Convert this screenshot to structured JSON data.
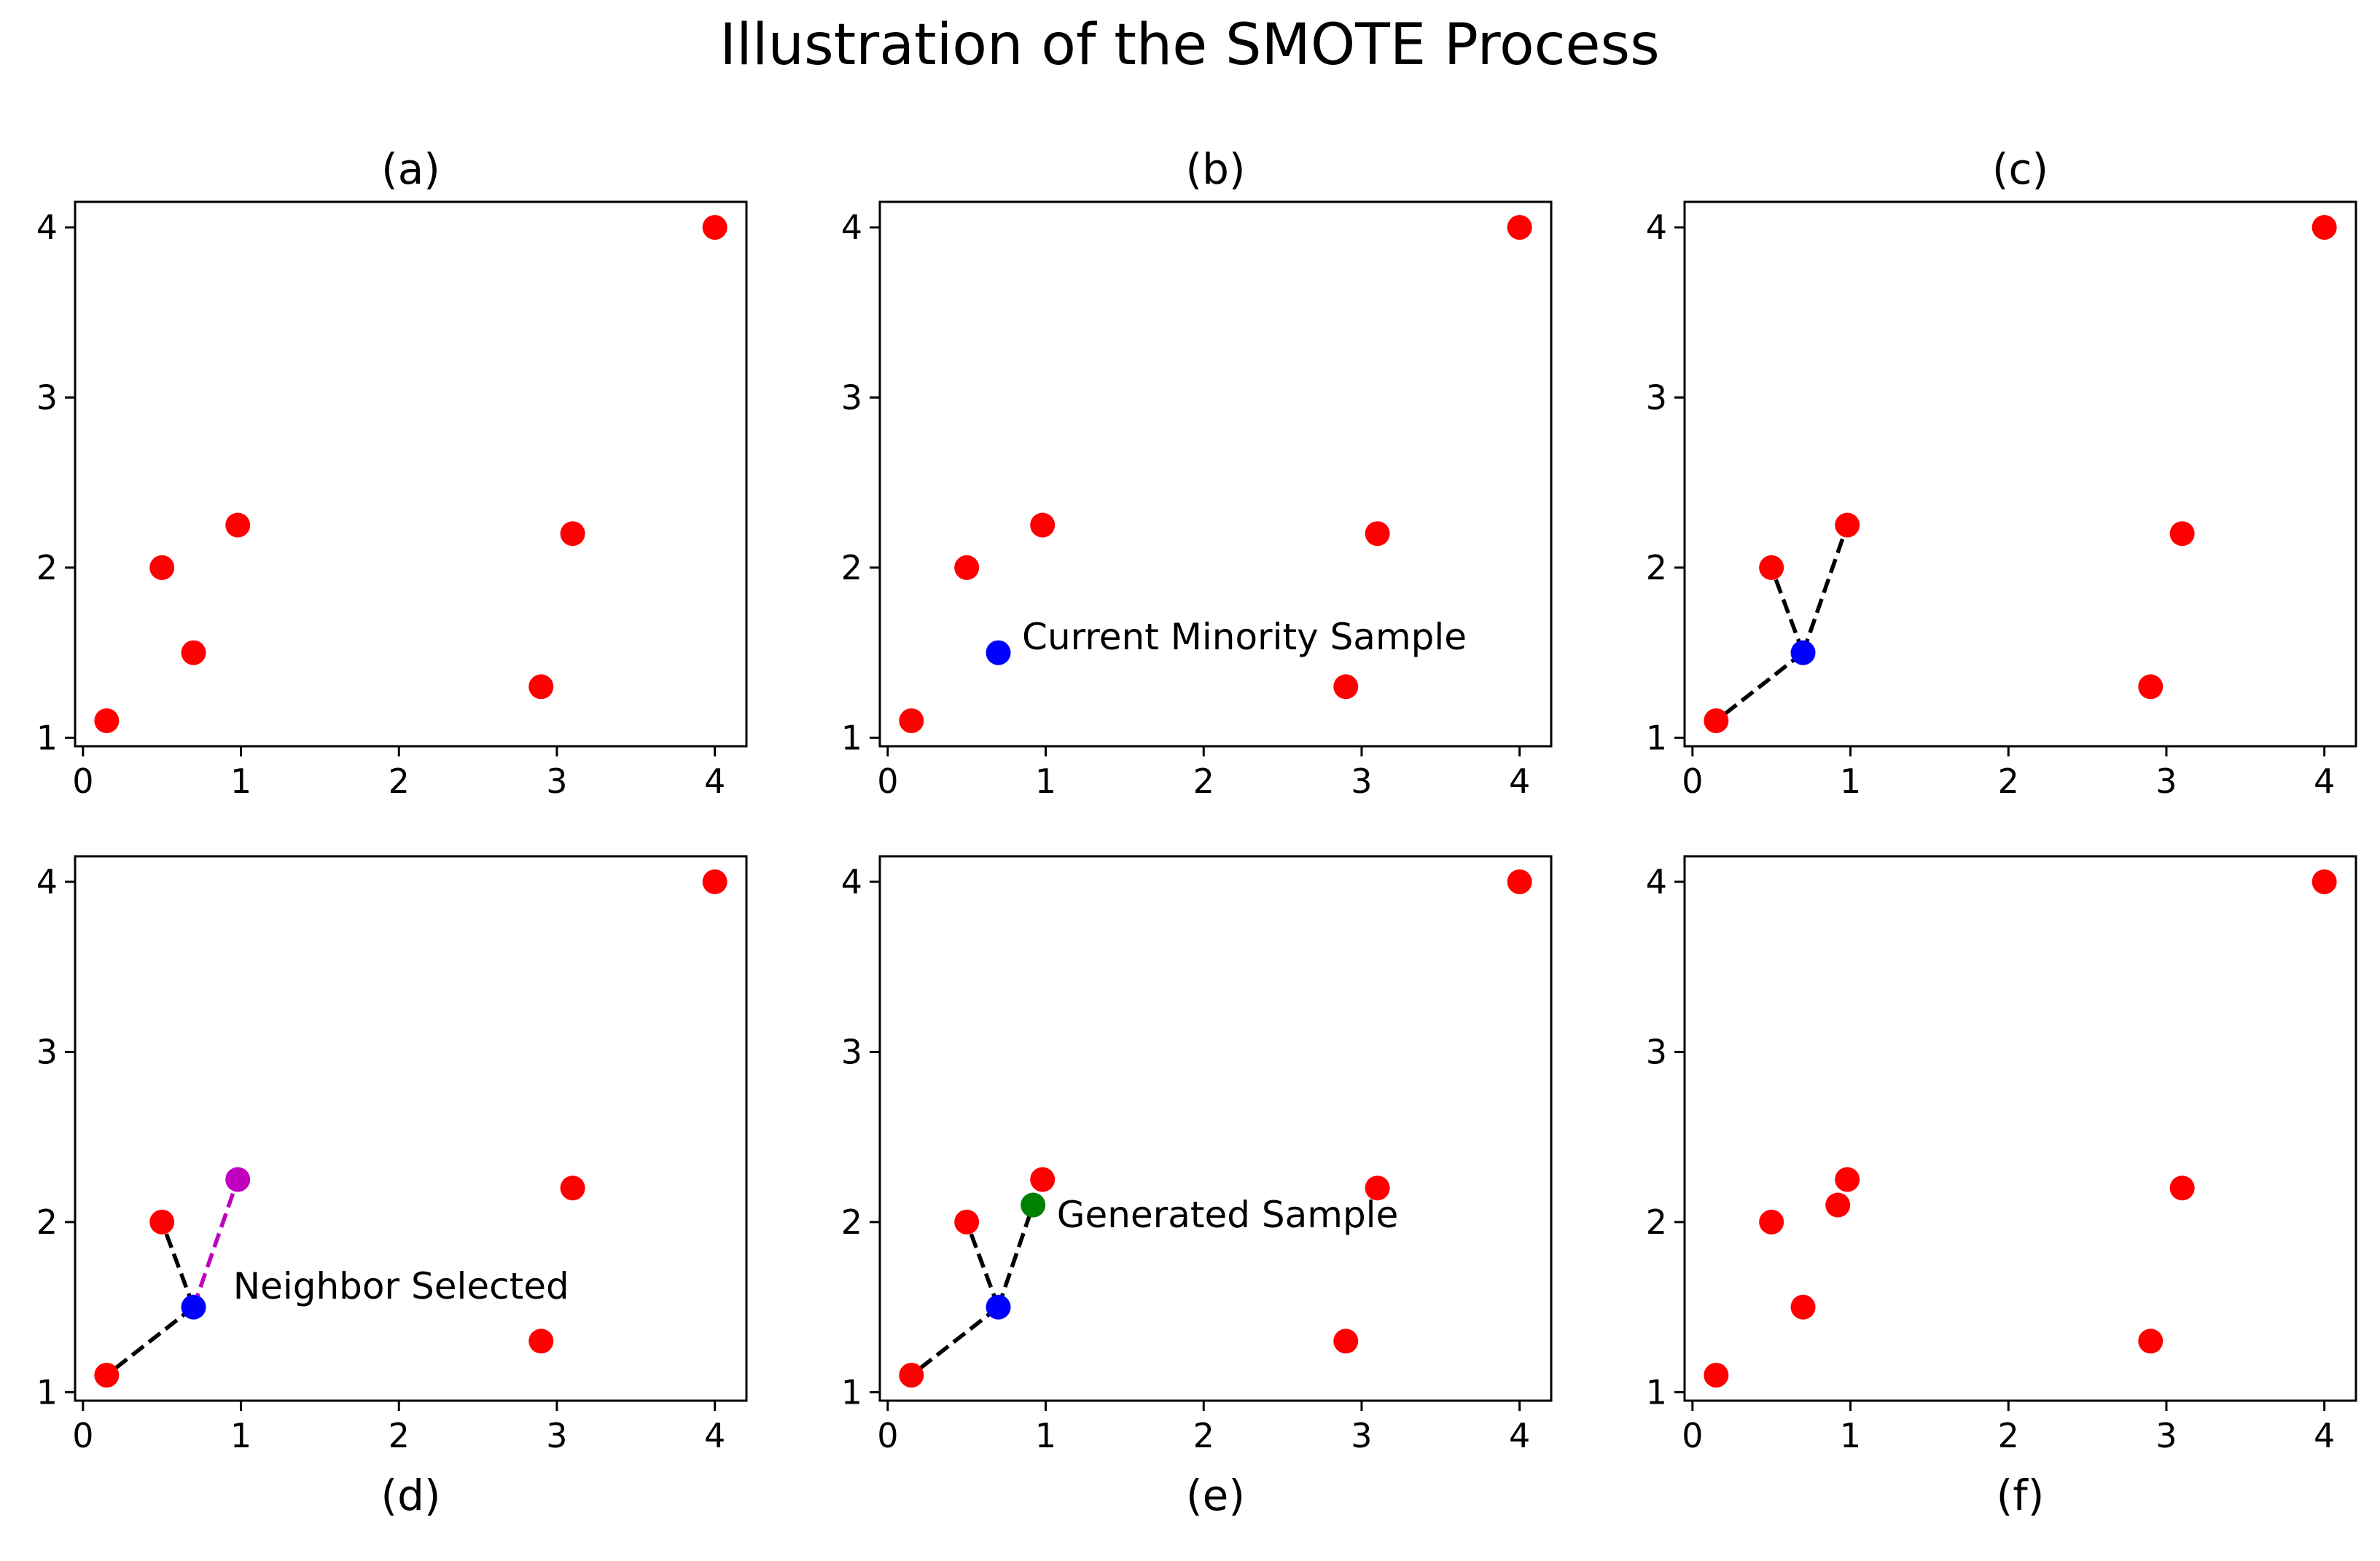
{
  "figure_title": "Illustration of the SMOTE Process",
  "colors": {
    "point": "#ff0000",
    "current": "#0000ff",
    "selected_neighbor": "#bf00bf",
    "generated": "#008000",
    "line_neighbor": "#000000",
    "line_selected": "#bf00bf"
  },
  "chart_data": [
    {
      "id": "a",
      "type": "scatter",
      "title": "(a)",
      "title_position": "top",
      "xlim": [
        -0.05,
        4.2
      ],
      "ylim": [
        0.95,
        4.15
      ],
      "xticks": [
        0,
        1,
        2,
        3,
        4
      ],
      "yticks": [
        1,
        2,
        3,
        4
      ],
      "points": [
        {
          "x": 0.15,
          "y": 1.1,
          "role": "minority"
        },
        {
          "x": 0.5,
          "y": 2.0,
          "role": "minority"
        },
        {
          "x": 0.7,
          "y": 1.5,
          "role": "minority"
        },
        {
          "x": 0.98,
          "y": 2.25,
          "role": "minority"
        },
        {
          "x": 2.9,
          "y": 1.3,
          "role": "minority"
        },
        {
          "x": 3.1,
          "y": 2.2,
          "role": "minority"
        },
        {
          "x": 4.0,
          "y": 4.0,
          "role": "minority"
        }
      ],
      "lines": [],
      "annotations": []
    },
    {
      "id": "b",
      "type": "scatter",
      "title": "(b)",
      "title_position": "top",
      "xlim": [
        -0.05,
        4.2
      ],
      "ylim": [
        0.95,
        4.15
      ],
      "xticks": [
        0,
        1,
        2,
        3,
        4
      ],
      "yticks": [
        1,
        2,
        3,
        4
      ],
      "points": [
        {
          "x": 0.15,
          "y": 1.1,
          "role": "minority"
        },
        {
          "x": 0.5,
          "y": 2.0,
          "role": "minority"
        },
        {
          "x": 0.7,
          "y": 1.5,
          "role": "current"
        },
        {
          "x": 0.98,
          "y": 2.25,
          "role": "minority"
        },
        {
          "x": 2.9,
          "y": 1.3,
          "role": "minority"
        },
        {
          "x": 3.1,
          "y": 2.2,
          "role": "minority"
        },
        {
          "x": 4.0,
          "y": 4.0,
          "role": "minority"
        }
      ],
      "lines": [],
      "annotations": [
        {
          "text": "Current Minority Sample",
          "x": 0.85,
          "y": 1.52
        }
      ]
    },
    {
      "id": "c",
      "type": "scatter",
      "title": "(c)",
      "title_position": "top",
      "xlim": [
        -0.05,
        4.2
      ],
      "ylim": [
        0.95,
        4.15
      ],
      "xticks": [
        0,
        1,
        2,
        3,
        4
      ],
      "yticks": [
        1,
        2,
        3,
        4
      ],
      "points": [
        {
          "x": 0.15,
          "y": 1.1,
          "role": "minority"
        },
        {
          "x": 0.5,
          "y": 2.0,
          "role": "minority"
        },
        {
          "x": 0.7,
          "y": 1.5,
          "role": "current"
        },
        {
          "x": 0.98,
          "y": 2.25,
          "role": "minority"
        },
        {
          "x": 2.9,
          "y": 1.3,
          "role": "minority"
        },
        {
          "x": 3.1,
          "y": 2.2,
          "role": "minority"
        },
        {
          "x": 4.0,
          "y": 4.0,
          "role": "minority"
        }
      ],
      "lines": [
        {
          "from": [
            0.7,
            1.5
          ],
          "to": [
            0.15,
            1.1
          ],
          "style": "neighbor"
        },
        {
          "from": [
            0.7,
            1.5
          ],
          "to": [
            0.5,
            2.0
          ],
          "style": "neighbor"
        },
        {
          "from": [
            0.7,
            1.5
          ],
          "to": [
            0.98,
            2.25
          ],
          "style": "neighbor"
        }
      ],
      "annotations": []
    },
    {
      "id": "d",
      "type": "scatter",
      "title": "(d)",
      "title_position": "bottom",
      "xlim": [
        -0.05,
        4.2
      ],
      "ylim": [
        0.95,
        4.15
      ],
      "xticks": [
        0,
        1,
        2,
        3,
        4
      ],
      "yticks": [
        1,
        2,
        3,
        4
      ],
      "points": [
        {
          "x": 0.15,
          "y": 1.1,
          "role": "minority"
        },
        {
          "x": 0.5,
          "y": 2.0,
          "role": "minority"
        },
        {
          "x": 0.7,
          "y": 1.5,
          "role": "current"
        },
        {
          "x": 0.98,
          "y": 2.25,
          "role": "selected_neighbor"
        },
        {
          "x": 2.9,
          "y": 1.3,
          "role": "minority"
        },
        {
          "x": 3.1,
          "y": 2.2,
          "role": "minority"
        },
        {
          "x": 4.0,
          "y": 4.0,
          "role": "minority"
        }
      ],
      "lines": [
        {
          "from": [
            0.7,
            1.5
          ],
          "to": [
            0.15,
            1.1
          ],
          "style": "neighbor"
        },
        {
          "from": [
            0.7,
            1.5
          ],
          "to": [
            0.5,
            2.0
          ],
          "style": "neighbor"
        },
        {
          "from": [
            0.7,
            1.5
          ],
          "to": [
            0.98,
            2.25
          ],
          "style": "selected"
        }
      ],
      "annotations": [
        {
          "text": "Neighbor Selected",
          "x": 0.95,
          "y": 1.55
        }
      ]
    },
    {
      "id": "e",
      "type": "scatter",
      "title": "(e)",
      "title_position": "bottom",
      "xlim": [
        -0.05,
        4.2
      ],
      "ylim": [
        0.95,
        4.15
      ],
      "xticks": [
        0,
        1,
        2,
        3,
        4
      ],
      "yticks": [
        1,
        2,
        3,
        4
      ],
      "points": [
        {
          "x": 0.15,
          "y": 1.1,
          "role": "minority"
        },
        {
          "x": 0.5,
          "y": 2.0,
          "role": "minority"
        },
        {
          "x": 0.7,
          "y": 1.5,
          "role": "current"
        },
        {
          "x": 0.98,
          "y": 2.25,
          "role": "minority"
        },
        {
          "x": 0.92,
          "y": 2.1,
          "role": "generated"
        },
        {
          "x": 2.9,
          "y": 1.3,
          "role": "minority"
        },
        {
          "x": 3.1,
          "y": 2.2,
          "role": "minority"
        },
        {
          "x": 4.0,
          "y": 4.0,
          "role": "minority"
        }
      ],
      "lines": [
        {
          "from": [
            0.7,
            1.5
          ],
          "to": [
            0.15,
            1.1
          ],
          "style": "neighbor"
        },
        {
          "from": [
            0.7,
            1.5
          ],
          "to": [
            0.5,
            2.0
          ],
          "style": "neighbor"
        },
        {
          "from": [
            0.7,
            1.5
          ],
          "to": [
            0.92,
            2.1
          ],
          "style": "neighbor"
        }
      ],
      "annotations": [
        {
          "text": "Generated Sample",
          "x": 1.07,
          "y": 1.97
        }
      ]
    },
    {
      "id": "f",
      "type": "scatter",
      "title": "(f)",
      "title_position": "bottom",
      "xlim": [
        -0.05,
        4.2
      ],
      "ylim": [
        0.95,
        4.15
      ],
      "xticks": [
        0,
        1,
        2,
        3,
        4
      ],
      "yticks": [
        1,
        2,
        3,
        4
      ],
      "points": [
        {
          "x": 0.15,
          "y": 1.1,
          "role": "minority"
        },
        {
          "x": 0.5,
          "y": 2.0,
          "role": "minority"
        },
        {
          "x": 0.7,
          "y": 1.5,
          "role": "minority"
        },
        {
          "x": 0.92,
          "y": 2.1,
          "role": "minority"
        },
        {
          "x": 0.98,
          "y": 2.25,
          "role": "minority"
        },
        {
          "x": 2.9,
          "y": 1.3,
          "role": "minority"
        },
        {
          "x": 3.1,
          "y": 2.2,
          "role": "minority"
        },
        {
          "x": 4.0,
          "y": 4.0,
          "role": "minority"
        }
      ],
      "lines": [],
      "annotations": []
    }
  ]
}
